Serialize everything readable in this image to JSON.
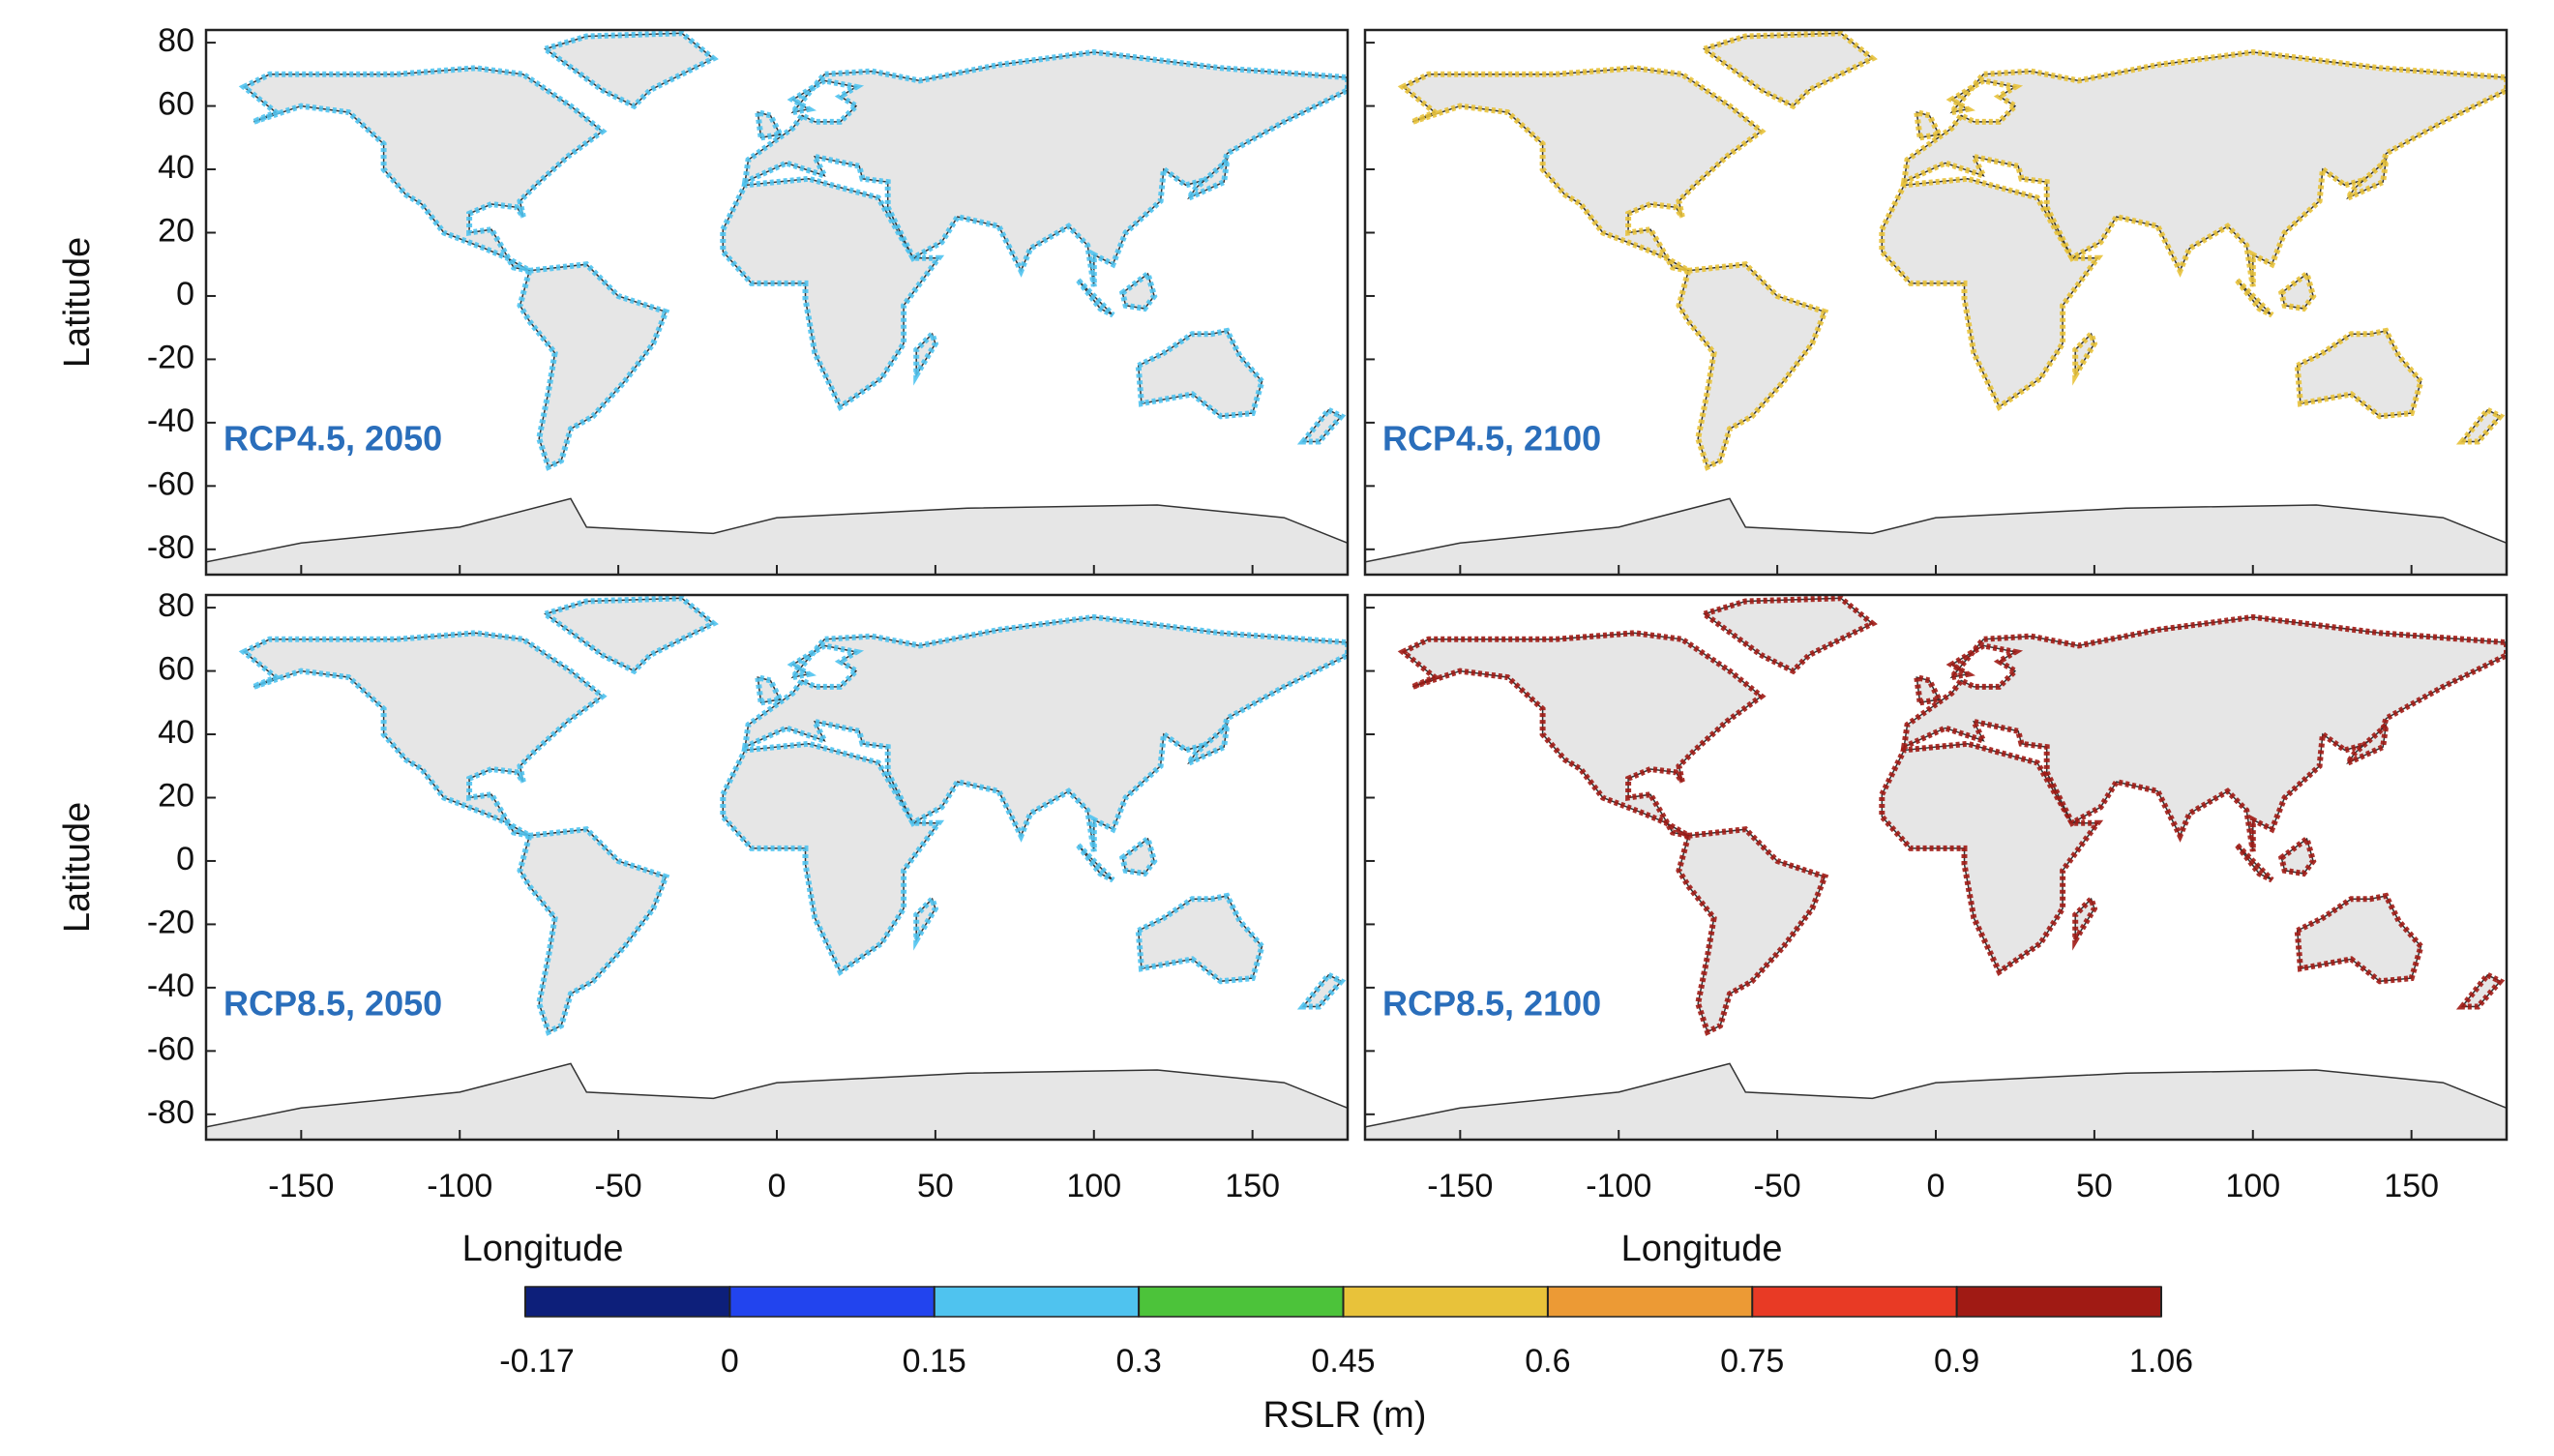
{
  "chart_data": {
    "type": "map",
    "panels": [
      {
        "label": "RCP4.5, 2050",
        "color": "#4fc3ef"
      },
      {
        "label": "RCP4.5, 2100",
        "color": "#e8c23a"
      },
      {
        "label": "RCP8.5, 2050",
        "color": "#4fc3ef"
      },
      {
        "label": "RCP8.5, 2100",
        "color": "#a01a14"
      }
    ],
    "xlabel": "Longitude",
    "ylabel": "Latitude",
    "xlim": [
      -180,
      180
    ],
    "ylim": [
      -88,
      84
    ],
    "xticks": [
      -150,
      -100,
      -50,
      0,
      50,
      100,
      150
    ],
    "yticks": [
      -80,
      -60,
      -40,
      -20,
      0,
      20,
      40,
      60,
      80
    ],
    "colorbar": {
      "label": "RSLR (m)",
      "bounds": [
        -0.17,
        0,
        0.15,
        0.3,
        0.45,
        0.6,
        0.75,
        0.9,
        1.06
      ],
      "colors": [
        "#0d1f7a",
        "#2244ee",
        "#4fc3ef",
        "#4cc33a",
        "#e8c23a",
        "#ec9a35",
        "#e83a25",
        "#a01a14"
      ]
    }
  }
}
